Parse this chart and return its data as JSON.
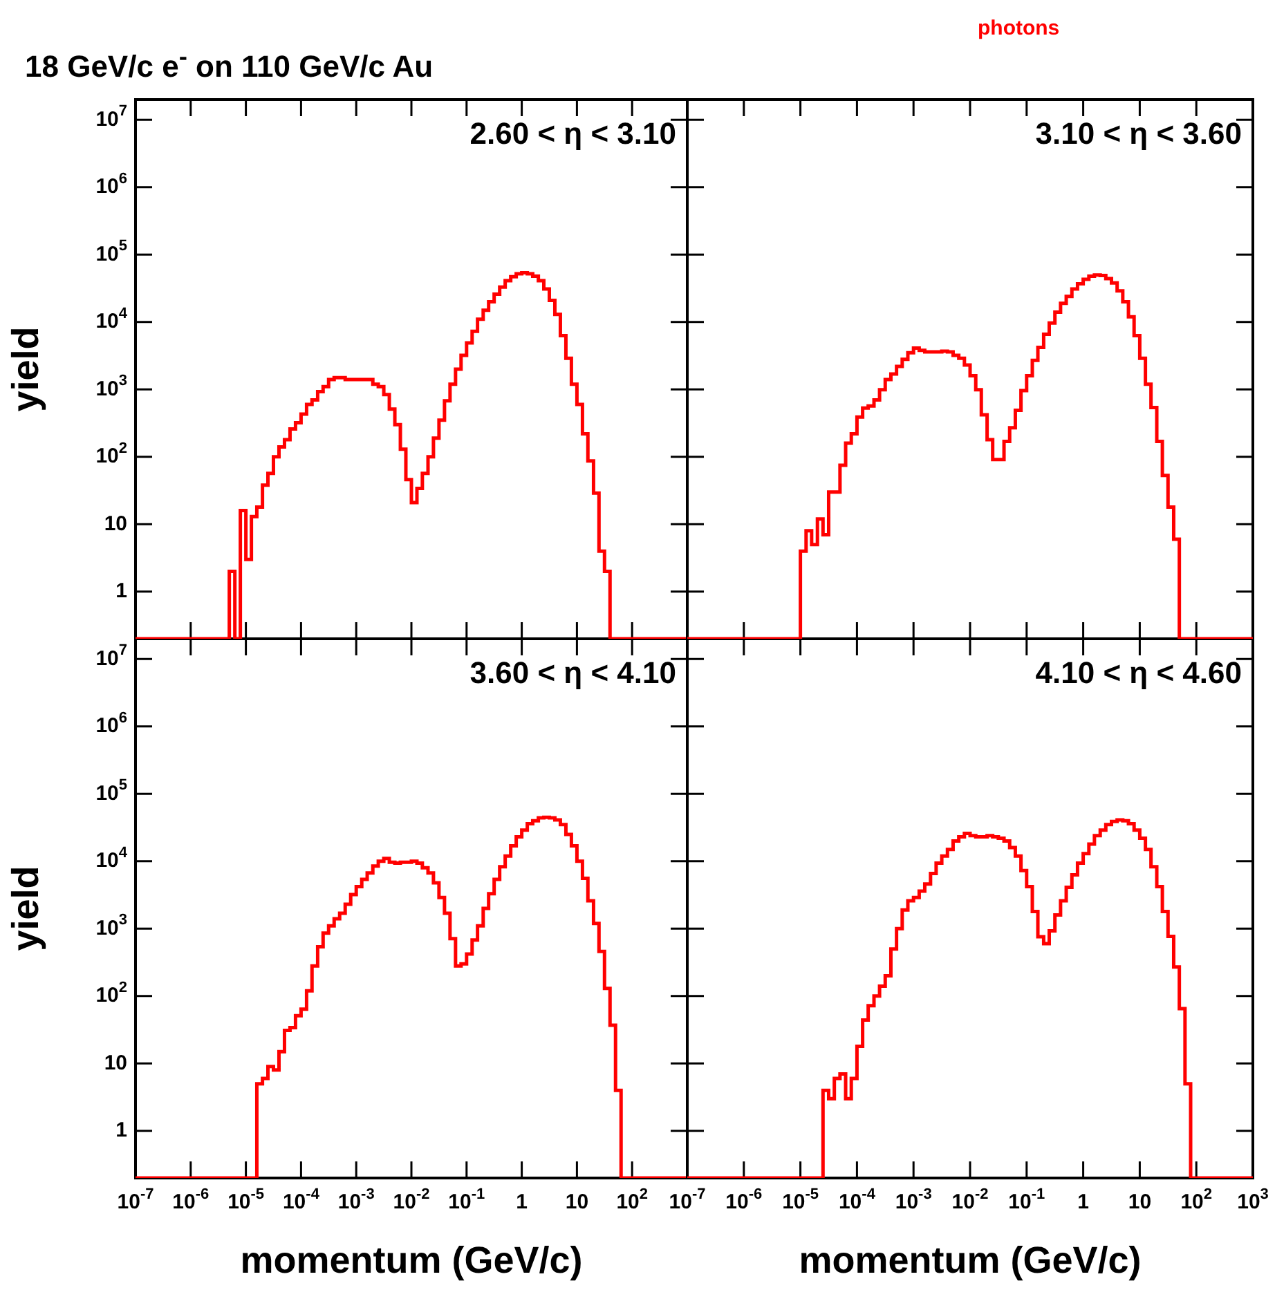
{
  "chart_data": [
    {
      "type": "histogram",
      "title": "18 GeV/c e$^{-}$ on 110 GeV/c Au",
      "ylabel": "yield",
      "annotations": [
        "2.60 < η < 3.10"
      ],
      "log": "xy",
      "xlim": [
        1e-07,
        1000
      ],
      "ylim": [
        0.2,
        20000000.0
      ],
      "tick_labels": "y",
      "xticks": [
        1e-07,
        1e-06,
        1e-05,
        0.0001,
        0.001,
        0.01,
        0.1,
        1,
        10,
        100
      ],
      "yticks": [
        1,
        10,
        {
          "value": 100,
          "label": "10$^{2}$"
        },
        {
          "value": 1000,
          "label": "10$^{3}$"
        },
        {
          "value": 10000,
          "label": "10$^{4}$"
        },
        {
          "value": 100000,
          "label": "10$^{5}$"
        },
        {
          "value": 1000000,
          "label": "10$^{6}$"
        },
        {
          "value": 10000000,
          "label": "10$^{7}$"
        }
      ],
      "bins": [
        1e-07,
        5.01e-06,
        6.31e-06,
        7.94e-06,
        1e-05,
        1.26e-05,
        1.58e-05,
        2e-05,
        2.51e-05,
        3.16e-05,
        3.98e-05,
        5.01e-05,
        6.31e-05,
        7.94e-05,
        0.0001,
        0.000126,
        0.000158,
        0.0002,
        0.000251,
        0.000316,
        0.000398,
        0.000501,
        0.000631,
        0.000794,
        0.001,
        0.00126,
        0.00158,
        0.002,
        0.00251,
        0.00316,
        0.00398,
        0.00501,
        0.00631,
        0.00794,
        0.01,
        0.0126,
        0.0158,
        0.02,
        0.0251,
        0.0316,
        0.0398,
        0.0501,
        0.0631,
        0.0794,
        0.1,
        0.126,
        0.158,
        0.2,
        0.251,
        0.316,
        0.398,
        0.501,
        0.631,
        0.794,
        1,
        1.26,
        1.58,
        2,
        2.51,
        3.16,
        3.98,
        5.01,
        6.31,
        7.94,
        10,
        12.6,
        15.8,
        20,
        25.1,
        31.6,
        39.8,
        1000
      ],
      "series": [
        {
          "color": "#ff0000",
          "values": [
            null,
            2,
            null,
            16,
            3,
            13,
            18,
            38,
            57,
            100,
            140,
            180,
            260,
            320,
            430,
            600,
            700,
            930,
            1100,
            1400,
            1500,
            1500,
            1400,
            1400,
            1400,
            1400,
            1400,
            1200,
            1100,
            840,
            510,
            300,
            130,
            46,
            21,
            34,
            57,
            100,
            190,
            350,
            680,
            1200,
            2000,
            3200,
            4900,
            7300,
            11000,
            15000,
            20000,
            26000,
            33000,
            41000,
            47000,
            52000,
            54000,
            52000,
            48000,
            41000,
            31000,
            21000,
            13000,
            6300,
            2900,
            1200,
            600,
            220,
            87,
            29,
            4,
            2,
            null
          ]
        }
      ]
    },
    {
      "type": "histogram",
      "annotations": [
        "3.10 < η < 3.60"
      ],
      "log": "xy",
      "xlim": [
        1e-07,
        1000
      ],
      "ylim": [
        0.2,
        20000000.0
      ],
      "tick_labels": false,
      "xticks": [
        1e-07,
        1e-06,
        1e-05,
        0.0001,
        0.001,
        0.01,
        0.1,
        1,
        10,
        100,
        1000
      ],
      "yticks": [
        1,
        10,
        100,
        1000,
        10000,
        100000,
        1000000,
        10000000
      ],
      "bins": [
        1e-07,
        1e-05,
        1.26e-05,
        1.58e-05,
        2e-05,
        2.51e-05,
        3.16e-05,
        3.98e-05,
        5.01e-05,
        6.31e-05,
        7.94e-05,
        0.0001,
        0.000126,
        0.000158,
        0.0002,
        0.000251,
        0.000316,
        0.000398,
        0.000501,
        0.000631,
        0.000794,
        0.001,
        0.00126,
        0.00158,
        0.002,
        0.00251,
        0.00316,
        0.00398,
        0.00501,
        0.00631,
        0.00794,
        0.01,
        0.0126,
        0.0158,
        0.02,
        0.0251,
        0.0316,
        0.0398,
        0.0501,
        0.0631,
        0.0794,
        0.1,
        0.126,
        0.158,
        0.2,
        0.251,
        0.316,
        0.398,
        0.501,
        0.631,
        0.794,
        1,
        1.26,
        1.58,
        2,
        2.51,
        3.16,
        3.98,
        5.01,
        6.31,
        7.94,
        10,
        12.6,
        15.8,
        20,
        25.1,
        31.6,
        39.8,
        50.1,
        1000
      ],
      "series": [
        {
          "name": "photons",
          "color": "#ff0000",
          "values": [
            null,
            4,
            8,
            5,
            12,
            7,
            30,
            30,
            75,
            160,
            220,
            390,
            530,
            570,
            700,
            990,
            1400,
            1700,
            2200,
            2800,
            3500,
            4100,
            3800,
            3600,
            3600,
            3600,
            3700,
            3600,
            3200,
            2900,
            2300,
            1600,
            990,
            420,
            180,
            91,
            91,
            170,
            270,
            490,
            960,
            1600,
            2700,
            4200,
            6600,
            9700,
            14000,
            19000,
            24000,
            31000,
            37000,
            43000,
            48000,
            50000,
            49000,
            44000,
            38000,
            29000,
            20000,
            12000,
            6300,
            2900,
            1200,
            540,
            170,
            53,
            18,
            6,
            null
          ]
        }
      ]
    },
    {
      "type": "histogram",
      "xlabel": "momentum (GeV/c)",
      "ylabel": "yield",
      "annotations": [
        "3.60 < η < 4.10"
      ],
      "log": "xy",
      "xlim": [
        1e-07,
        1000
      ],
      "ylim": [
        0.2,
        20000000.0
      ],
      "xticks": [
        {
          "value": 1e-07,
          "label": "10$^{-7}$"
        },
        {
          "value": 1e-06,
          "label": "10$^{-6}$"
        },
        {
          "value": 1e-05,
          "label": "10$^{-5}$"
        },
        {
          "value": 0.0001,
          "label": "10$^{-4}$"
        },
        {
          "value": 0.001,
          "label": "10$^{-3}$"
        },
        {
          "value": 0.01,
          "label": "10$^{-2}$"
        },
        {
          "value": 0.1,
          "label": "10$^{-1}$"
        },
        1,
        10,
        {
          "value": 100,
          "label": "10$^{2}$"
        }
      ],
      "yticks": [
        1,
        10,
        {
          "value": 100,
          "label": "10$^{2}$"
        },
        {
          "value": 1000,
          "label": "10$^{3}$"
        },
        {
          "value": 10000,
          "label": "10$^{4}$"
        },
        {
          "value": 100000,
          "label": "10$^{5}$"
        },
        {
          "value": 1000000,
          "label": "10$^{6}$"
        },
        {
          "value": 10000000,
          "label": "10$^{7}$"
        }
      ],
      "bins": [
        1e-07,
        1.58e-05,
        2e-05,
        2.51e-05,
        3.16e-05,
        3.98e-05,
        5.01e-05,
        6.31e-05,
        7.94e-05,
        0.0001,
        0.000126,
        0.000158,
        0.0002,
        0.000251,
        0.000316,
        0.000398,
        0.000501,
        0.000631,
        0.000794,
        0.001,
        0.00126,
        0.00158,
        0.002,
        0.00251,
        0.00316,
        0.00398,
        0.00501,
        0.00631,
        0.00794,
        0.01,
        0.0126,
        0.0158,
        0.02,
        0.0251,
        0.0316,
        0.0398,
        0.0501,
        0.0631,
        0.0794,
        0.1,
        0.126,
        0.158,
        0.2,
        0.251,
        0.316,
        0.398,
        0.501,
        0.631,
        0.794,
        1,
        1.26,
        1.58,
        2,
        2.51,
        3.16,
        3.98,
        5.01,
        6.31,
        7.94,
        10,
        12.6,
        15.8,
        20,
        25.1,
        31.6,
        39.8,
        50.1,
        63.1,
        1000
      ],
      "series": [
        {
          "color": "#ff0000",
          "values": [
            null,
            5,
            6,
            9,
            8,
            15,
            31,
            34,
            51,
            64,
            120,
            280,
            540,
            860,
            1100,
            1400,
            1700,
            2300,
            3200,
            4200,
            5400,
            6700,
            8500,
            10000,
            11000,
            9700,
            9400,
            9700,
            9700,
            10000,
            9400,
            8000,
            6700,
            4800,
            2900,
            1700,
            710,
            280,
            300,
            420,
            680,
            1100,
            2000,
            3300,
            5400,
            8300,
            12000,
            17000,
            23000,
            29000,
            36000,
            40000,
            44000,
            45000,
            44000,
            41000,
            35000,
            25000,
            17000,
            10000,
            5600,
            2600,
            1200,
            460,
            130,
            37,
            4,
            null
          ]
        }
      ]
    },
    {
      "type": "histogram",
      "xlabel": "momentum (GeV/c)",
      "annotations": [
        "4.10 < η < 4.60"
      ],
      "log": "xy",
      "xlim": [
        1e-07,
        1000
      ],
      "ylim": [
        0.2,
        20000000.0
      ],
      "tick_labels": "x",
      "xticks": [
        {
          "value": 1e-07,
          "label": "10$^{-7}$"
        },
        {
          "value": 1e-06,
          "label": "10$^{-6}$"
        },
        {
          "value": 1e-05,
          "label": "10$^{-5}$"
        },
        {
          "value": 0.0001,
          "label": "10$^{-4}$"
        },
        {
          "value": 0.001,
          "label": "10$^{-3}$"
        },
        {
          "value": 0.01,
          "label": "10$^{-2}$"
        },
        {
          "value": 0.1,
          "label": "10$^{-1}$"
        },
        1,
        10,
        {
          "value": 100,
          "label": "10$^{2}$"
        },
        {
          "value": 1000,
          "label": "10$^{3}$"
        }
      ],
      "yticks": [
        1,
        10,
        100,
        1000,
        10000,
        100000,
        1000000,
        10000000
      ],
      "bins": [
        1e-07,
        2.51e-05,
        3.16e-05,
        3.98e-05,
        5.01e-05,
        6.31e-05,
        7.94e-05,
        0.0001,
        0.000126,
        0.000158,
        0.0002,
        0.000251,
        0.000316,
        0.000398,
        0.000501,
        0.000631,
        0.000794,
        0.001,
        0.00126,
        0.00158,
        0.002,
        0.00251,
        0.00316,
        0.00398,
        0.00501,
        0.00631,
        0.00794,
        0.01,
        0.0126,
        0.0158,
        0.02,
        0.0251,
        0.0316,
        0.0398,
        0.0501,
        0.0631,
        0.0794,
        0.1,
        0.126,
        0.158,
        0.2,
        0.251,
        0.316,
        0.398,
        0.501,
        0.631,
        0.794,
        1,
        1.26,
        1.58,
        2,
        2.51,
        3.16,
        3.98,
        5.01,
        6.31,
        7.94,
        10,
        12.6,
        15.8,
        20,
        25.1,
        31.6,
        39.8,
        50.1,
        63.1,
        79.4,
        1000
      ],
      "series": [
        {
          "color": "#ff0000",
          "values": [
            null,
            4,
            3,
            6,
            7,
            3,
            6,
            18,
            44,
            72,
            100,
            140,
            200,
            500,
            1000,
            1900,
            2600,
            2900,
            3600,
            4600,
            6600,
            9400,
            12000,
            15000,
            20000,
            23000,
            26000,
            24000,
            23000,
            23000,
            24000,
            23000,
            22000,
            20000,
            16000,
            12000,
            7300,
            4200,
            1800,
            760,
            600,
            930,
            1600,
            2600,
            4100,
            6300,
            9400,
            13000,
            18000,
            24000,
            29000,
            35000,
            39000,
            41000,
            40000,
            36000,
            29000,
            22000,
            15000,
            8300,
            4200,
            1800,
            770,
            270,
            65,
            5,
            null
          ]
        }
      ]
    }
  ]
}
